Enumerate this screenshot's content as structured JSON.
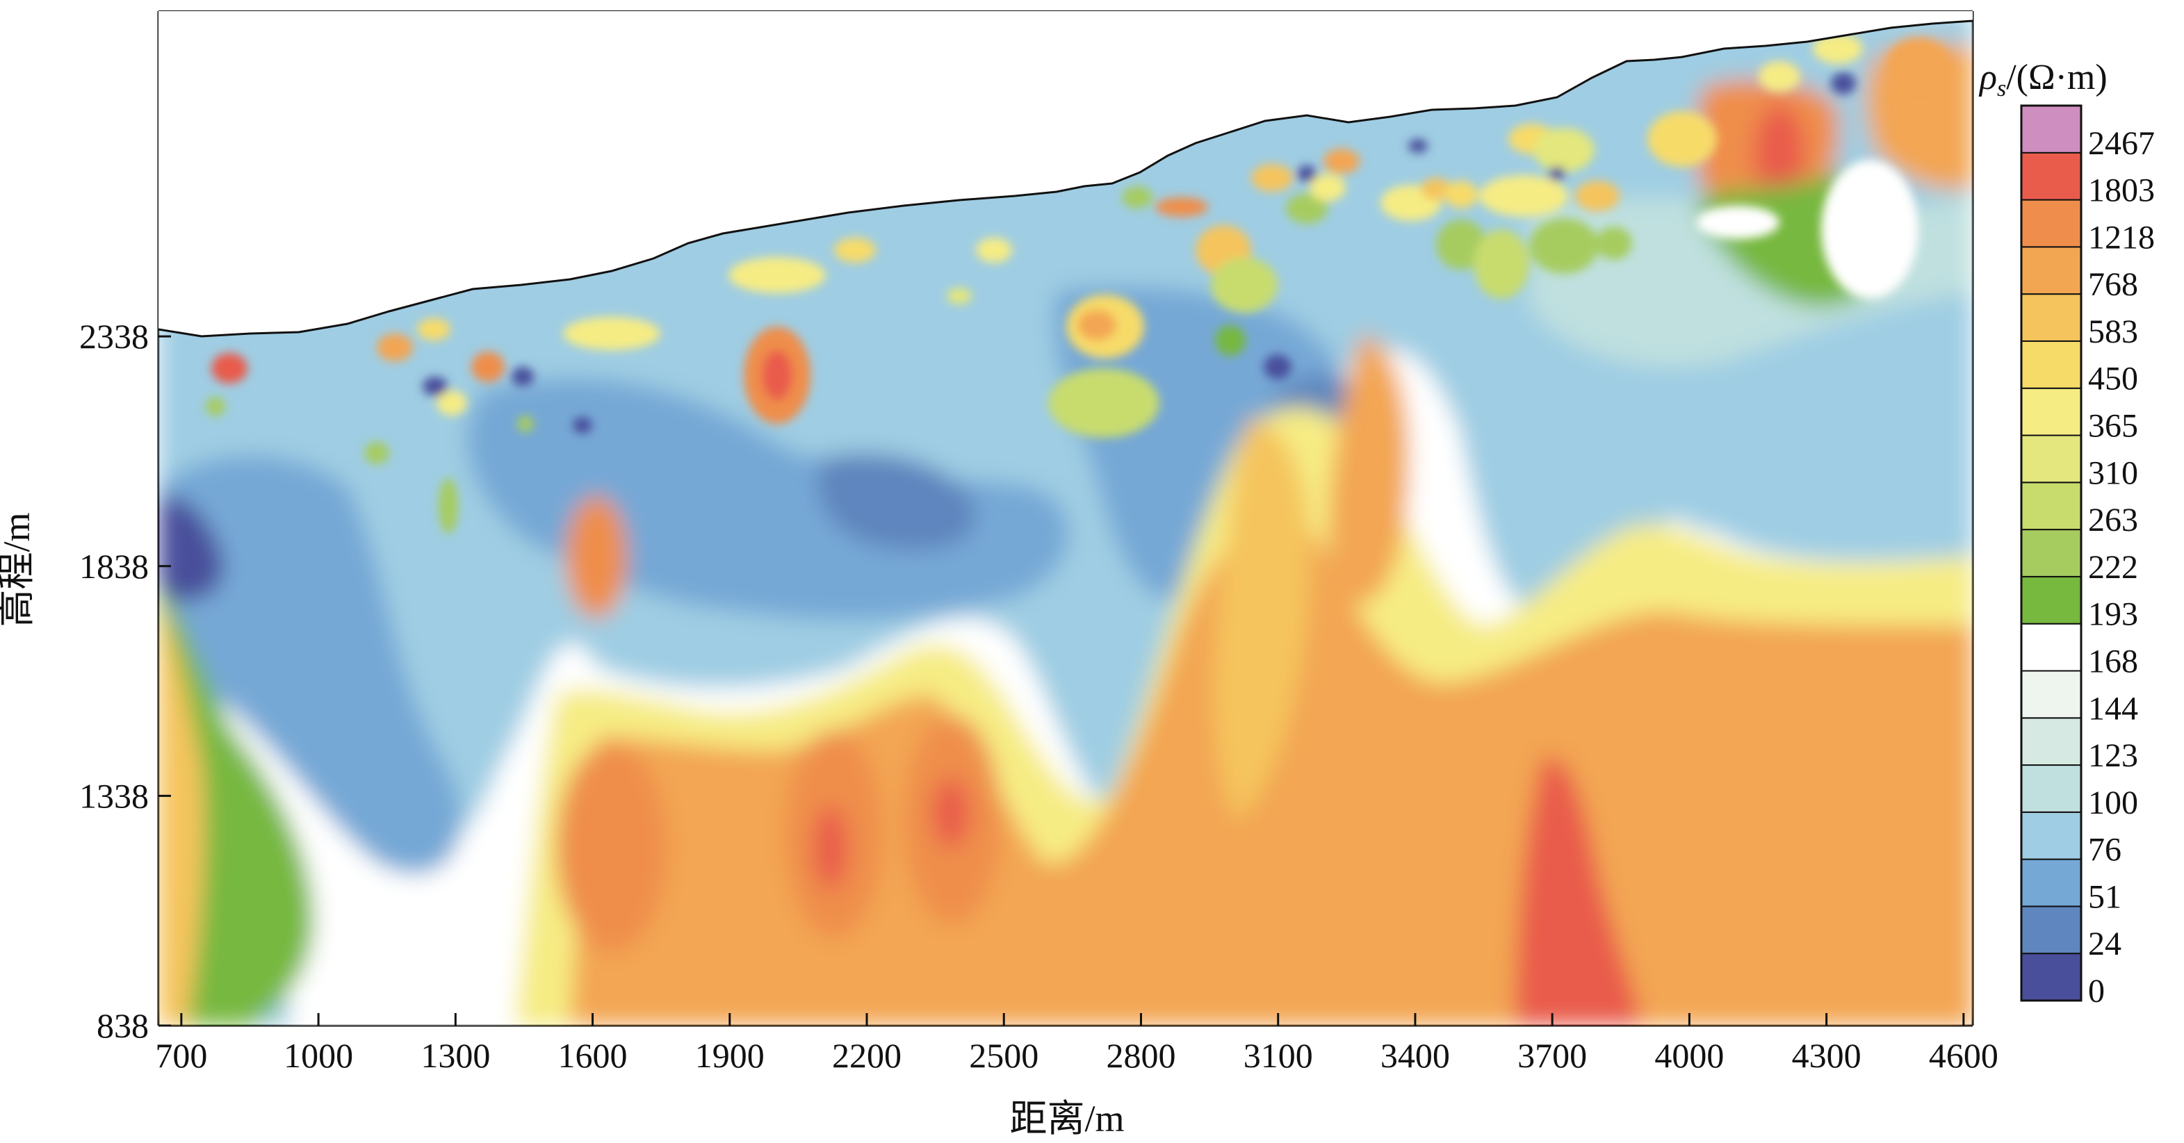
{
  "chart_data": {
    "type": "heatmap",
    "title": "",
    "xlabel": "距离/m",
    "ylabel": "高程/m",
    "xlim": [
      650,
      4620
    ],
    "ylim": [
      838,
      3046
    ],
    "x_ticks": [
      "700",
      "1000",
      "1300",
      "1600",
      "1900",
      "2200",
      "2500",
      "2800",
      "3100",
      "3400",
      "3700",
      "4000",
      "4300",
      "4600"
    ],
    "y_ticks": [
      "838",
      "1338",
      "1838",
      "2338"
    ],
    "colorbar": {
      "label_symbol": "ρ",
      "label_subscript": "s",
      "label_unit": "/(Ω·m)",
      "levels": [
        "0",
        "24",
        "51",
        "76",
        "100",
        "123",
        "144",
        "168",
        "193",
        "222",
        "263",
        "310",
        "365",
        "450",
        "583",
        "768",
        "1218",
        "1803",
        "2467"
      ],
      "colors": [
        "#4a4f9b",
        "#5f86be",
        "#76a8d6",
        "#9fcde3",
        "#bfe0df",
        "#d6eae3",
        "#eef5ef",
        "#ffffff",
        "#77b83f",
        "#a6cc60",
        "#c8dc6e",
        "#e3e77d",
        "#f6ec84",
        "#f7db69",
        "#f5c45d",
        "#f3a652",
        "#ef8e4c",
        "#e95c4c",
        "#cf8ec0"
      ]
    },
    "grid": false,
    "legend_placement": "right"
  }
}
